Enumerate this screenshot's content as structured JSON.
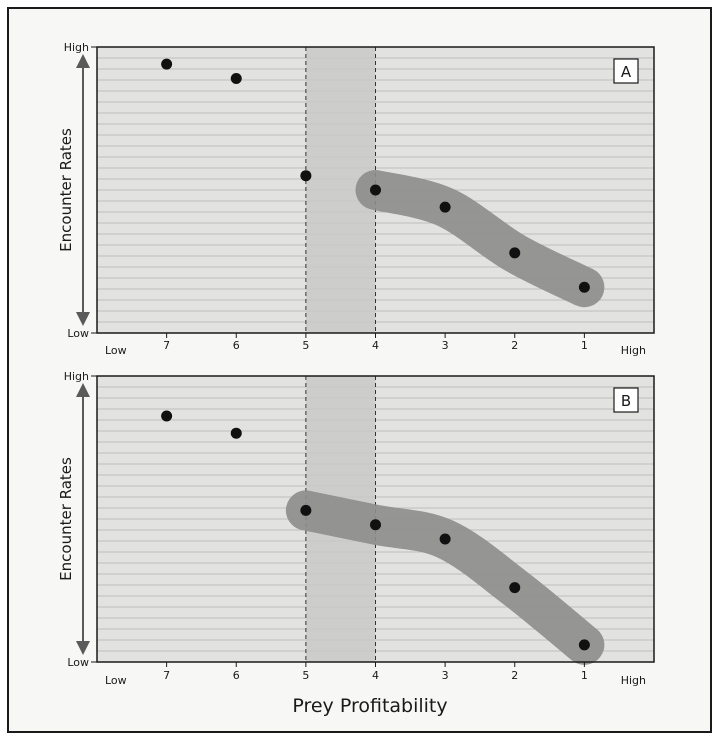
{
  "colors": {
    "panel_bg": "#e2e2e1",
    "grid_line": "#bdbdbc",
    "band": "#c9c9c8",
    "highlight": "#8d8d8c",
    "point": "#111111"
  },
  "chart_data": [
    {
      "type": "scatter",
      "panel_label": "A",
      "ylabel": "Encounter Rates",
      "y_tick_labels": {
        "high": "High",
        "low": "Low"
      },
      "x_end_labels": {
        "low": "Low",
        "high": "High"
      },
      "x_ticks": [
        "7",
        "6",
        "5",
        "4",
        "3",
        "2",
        "1"
      ],
      "x_tick_positions": [
        7,
        6,
        5,
        4,
        3,
        2,
        1
      ],
      "band": [
        5,
        4
      ],
      "xlim": [
        8,
        0
      ],
      "ylim": [
        0,
        1
      ],
      "points": [
        {
          "x": 7,
          "y": 0.94
        },
        {
          "x": 6,
          "y": 0.89
        },
        {
          "x": 5,
          "y": 0.55
        },
        {
          "x": 4,
          "y": 0.5
        },
        {
          "x": 3,
          "y": 0.44
        },
        {
          "x": 2,
          "y": 0.28
        },
        {
          "x": 1,
          "y": 0.16
        }
      ],
      "highlighted": [
        4,
        3,
        2,
        1
      ]
    },
    {
      "type": "scatter",
      "panel_label": "B",
      "ylabel": "Encounter Rates",
      "y_tick_labels": {
        "high": "High",
        "low": "Low"
      },
      "x_end_labels": {
        "low": "Low",
        "high": "High"
      },
      "x_ticks": [
        "7",
        "6",
        "5",
        "4",
        "3",
        "2",
        "1"
      ],
      "x_tick_positions": [
        7,
        6,
        5,
        4,
        3,
        2,
        1
      ],
      "band": [
        5,
        4
      ],
      "xlim": [
        8,
        0
      ],
      "ylim": [
        0,
        1
      ],
      "points": [
        {
          "x": 7,
          "y": 0.86
        },
        {
          "x": 6,
          "y": 0.8
        },
        {
          "x": 5,
          "y": 0.53
        },
        {
          "x": 4,
          "y": 0.48
        },
        {
          "x": 3,
          "y": 0.43
        },
        {
          "x": 2,
          "y": 0.26
        },
        {
          "x": 1,
          "y": 0.06
        }
      ],
      "highlighted": [
        5,
        4,
        3,
        2,
        1
      ]
    }
  ],
  "xlabel": "Prey Profitability"
}
